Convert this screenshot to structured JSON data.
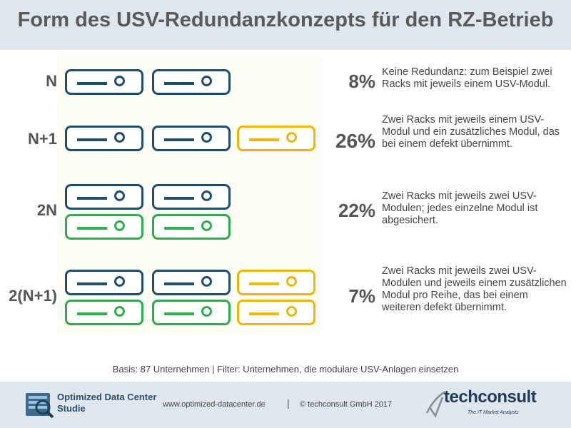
{
  "title": "Form des USV-Redundanzkonzepts für den RZ-Betrieb",
  "chart_data": {
    "type": "bar",
    "title": "Form des USV-Redundanzkonzepts für den RZ-Betrieb",
    "categories": [
      "N",
      "N+1",
      "2N",
      "2(N+1)"
    ],
    "values": [
      8,
      26,
      22,
      7
    ],
    "value_labels": [
      "8%",
      "26%",
      "22%",
      "7%"
    ],
    "unit": "%",
    "descriptions": [
      "Keine Redundanz: zum Beispiel zwei Racks mit jeweils einem USV-Modul.",
      "Zwei Racks mit jeweils einem USV-Modul und ein zusätzliches Modul, das bei einem defekt übernimmt.",
      "Zwei Racks mit jeweils zwei USV-Modulen; jedes einzelne Modul ist abgesichert.",
      "Zwei Racks mit jeweils zwei USV-Modulen und jeweils einem zusätzlichen Modul pro Reihe, das bei einem weiteren defekt übernimmt."
    ],
    "colors": {
      "rack": "#1d4e6b",
      "redundant_module": "#2ead4b",
      "extra_module": "#f2b600"
    }
  },
  "basis": "Basis: 87 Unternehmen   |   Filter: Unternehmen, die modulare USV-Anlagen einsetzen",
  "footer": {
    "brand": "Optimized Data Center\nStudie",
    "website": "www.optimized-datacenter.de",
    "separator": "|",
    "copyright": "© techconsult GmbH 2017",
    "company": "techconsult",
    "tagline": "The IT Market Analysts"
  }
}
